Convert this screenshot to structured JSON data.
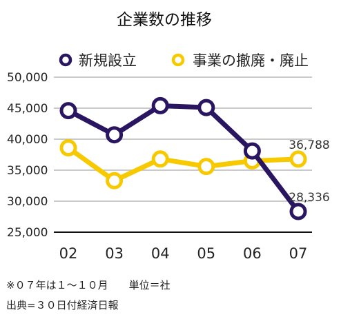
{
  "chart_data": {
    "type": "line",
    "title": "企業数の推移",
    "categories": [
      "02",
      "03",
      "04",
      "05",
      "06",
      "07"
    ],
    "ylim": [
      25000,
      50000
    ],
    "yticks": [
      "50,000",
      "45,000",
      "40,000",
      "35,000",
      "30,000",
      "25,000"
    ],
    "ytick_values": [
      50000,
      45000,
      40000,
      35000,
      30000,
      25000
    ],
    "grid": true,
    "legend_position": "top",
    "series": [
      {
        "name": "新規設立",
        "color": "#2a1660",
        "values": [
          44600,
          40700,
          45400,
          45100,
          38100,
          28336
        ]
      },
      {
        "name": "事業の撤廃・廃止",
        "color": "#f7c900",
        "values": [
          38600,
          33300,
          36800,
          35600,
          36500,
          36788
        ]
      }
    ],
    "data_labels": [
      {
        "series": 1,
        "index": 5,
        "text": "36,788"
      },
      {
        "series": 0,
        "index": 5,
        "text": "28,336"
      }
    ]
  },
  "notes": {
    "period": "※０７年は１～１０月　　単位＝社",
    "source": "出典=３０日付経済日報"
  }
}
